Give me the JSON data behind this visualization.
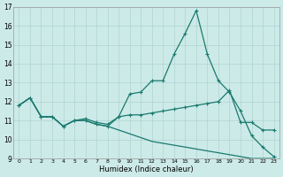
{
  "xlabel": "Humidex (Indice chaleur)",
  "bg_color": "#cceae8",
  "grid_color": "#aed4d2",
  "line_color": "#1a7a6e",
  "xlim": [
    -0.5,
    23.5
  ],
  "ylim": [
    9,
    17
  ],
  "yticks": [
    9,
    10,
    11,
    12,
    13,
    14,
    15,
    16,
    17
  ],
  "xticks": [
    0,
    1,
    2,
    3,
    4,
    5,
    6,
    7,
    8,
    9,
    10,
    11,
    12,
    13,
    14,
    15,
    16,
    17,
    18,
    19,
    20,
    21,
    22,
    23
  ],
  "line1_x": [
    0,
    1,
    2,
    3,
    4,
    5,
    6,
    7,
    8,
    9,
    10,
    11,
    12,
    13,
    14,
    15,
    16,
    17,
    18,
    19,
    20,
    21,
    22,
    23
  ],
  "line1_y": [
    11.8,
    12.2,
    11.2,
    11.2,
    10.7,
    11.0,
    11.0,
    10.8,
    10.7,
    11.2,
    12.4,
    12.5,
    13.1,
    13.1,
    14.5,
    15.6,
    16.8,
    14.5,
    13.1,
    12.5,
    11.5,
    10.2,
    9.6,
    9.1
  ],
  "line2_x": [
    0,
    1,
    2,
    3,
    4,
    5,
    6,
    7,
    8,
    9,
    10,
    11,
    12,
    13,
    14,
    15,
    16,
    17,
    18,
    19,
    20,
    21,
    22,
    23
  ],
  "line2_y": [
    11.8,
    12.2,
    11.2,
    11.2,
    10.7,
    11.0,
    11.1,
    10.9,
    10.8,
    11.2,
    11.3,
    11.3,
    11.4,
    11.5,
    11.6,
    11.7,
    11.8,
    11.9,
    12.0,
    12.6,
    10.9,
    10.9,
    10.5,
    10.5
  ],
  "line3_x": [
    0,
    1,
    2,
    3,
    4,
    5,
    6,
    7,
    8,
    9,
    10,
    11,
    12,
    13,
    14,
    15,
    16,
    17,
    18,
    19,
    20,
    21,
    22,
    23
  ],
  "line3_y": [
    11.8,
    12.2,
    11.2,
    11.2,
    10.7,
    11.0,
    11.0,
    10.8,
    10.7,
    10.5,
    10.3,
    10.1,
    9.9,
    9.8,
    9.7,
    9.6,
    9.5,
    9.4,
    9.3,
    9.2,
    9.1,
    9.0,
    9.0,
    9.0
  ]
}
